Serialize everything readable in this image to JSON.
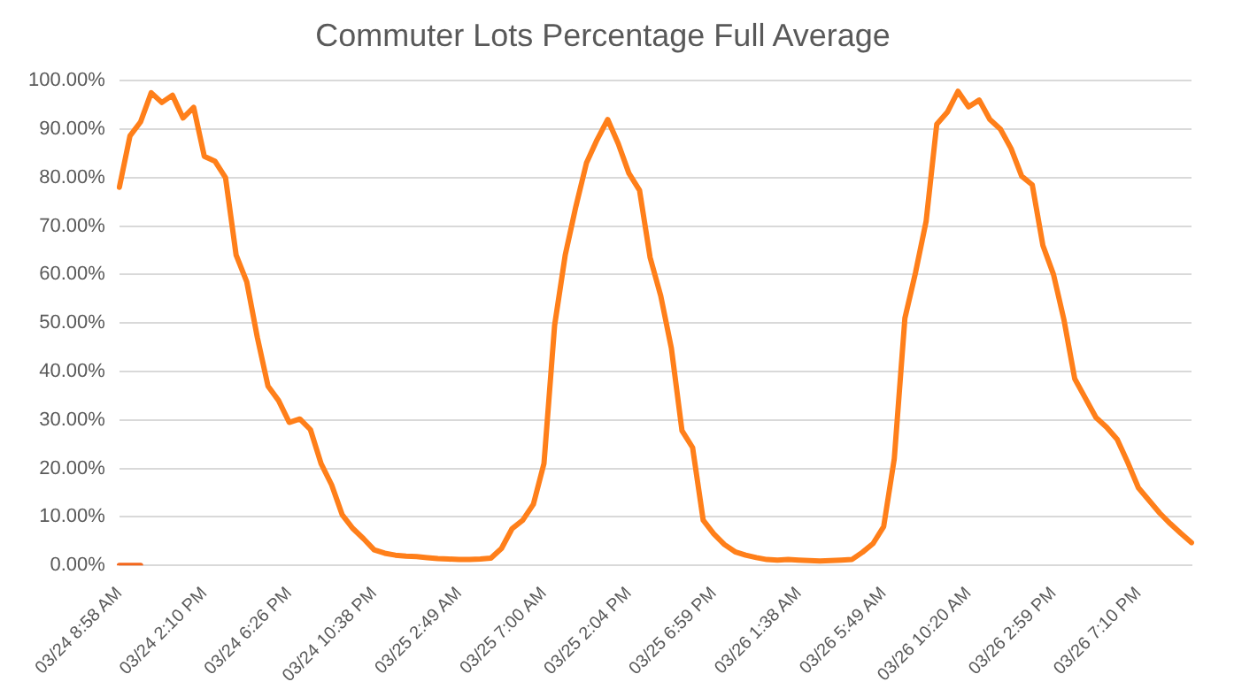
{
  "chart_data": {
    "type": "line",
    "title": "Commuter Lots Percentage Full Average",
    "categories": [
      "03/24 8:58 AM",
      null,
      null,
      null,
      null,
      null,
      null,
      null,
      "03/24 2:10 PM",
      null,
      null,
      null,
      null,
      null,
      null,
      null,
      "03/24 6:26 PM",
      null,
      null,
      null,
      null,
      null,
      null,
      null,
      "03/24 10:38 PM",
      null,
      null,
      null,
      null,
      null,
      null,
      null,
      "03/25 2:49 AM",
      null,
      null,
      null,
      null,
      null,
      null,
      null,
      "03/25 7:00 AM",
      null,
      null,
      null,
      null,
      null,
      null,
      null,
      "03/25 2:04 PM",
      null,
      null,
      null,
      null,
      null,
      null,
      null,
      "03/25 6:59 PM",
      null,
      null,
      null,
      null,
      null,
      null,
      null,
      "03/26 1:38 AM",
      null,
      null,
      null,
      null,
      null,
      null,
      null,
      "03/26 5:49 AM",
      null,
      null,
      null,
      null,
      null,
      null,
      null,
      "03/26 10:20 AM",
      null,
      null,
      null,
      null,
      null,
      null,
      null,
      "03/26 2:59 PM",
      null,
      null,
      null,
      null,
      null,
      null,
      null,
      "03/26 7:10 PM",
      null,
      null,
      null,
      null,
      null
    ],
    "series": [
      {
        "color": "#ff7f1a",
        "values": [
          78,
          88.6,
          91.5,
          97.5,
          95.5,
          97,
          92.3,
          94.5,
          84.4,
          83.4,
          80,
          64,
          58.5,
          47,
          37,
          34,
          29.5,
          30.2,
          28,
          21,
          16.6,
          10.4,
          7.6,
          5.5,
          3.2,
          2.5,
          2.1,
          1.9,
          1.8,
          1.6,
          1.4,
          1.3,
          1.2,
          1.2,
          1.3,
          1.5,
          3.5,
          7.6,
          9.3,
          12.6,
          21,
          49.5,
          64,
          74,
          83,
          87.8,
          92,
          87,
          80.9,
          77.4,
          63.5,
          55.6,
          44.8,
          27.8,
          24.3,
          9.3,
          6.5,
          4.3,
          2.8,
          2.1,
          1.6,
          1.2,
          1.1,
          1.2,
          1.1,
          1,
          0.9,
          1,
          1.1,
          1.2,
          2.7,
          4.5,
          8,
          22,
          51,
          60.4,
          71,
          91,
          93.5,
          97.8,
          94.6,
          96,
          92,
          90,
          86,
          80.3,
          78.5,
          66,
          60,
          50.5,
          38.5,
          34.5,
          30.5,
          28.5,
          26,
          21.2,
          16,
          13.4,
          10.8,
          8.6,
          6.6,
          4.7
        ]
      },
      {
        "color": "#f4661b",
        "values": [
          0,
          0,
          0,
          null,
          null,
          null,
          null,
          null,
          null,
          null,
          null,
          null,
          null,
          null,
          null,
          null,
          null,
          null,
          null,
          null,
          null,
          null,
          null,
          null,
          null,
          null,
          null,
          null,
          null,
          null,
          null,
          null,
          null,
          null,
          null,
          null,
          null,
          null,
          null,
          null,
          null,
          null,
          null,
          null,
          null,
          null,
          null,
          null,
          null,
          null,
          null,
          null,
          null,
          null,
          null,
          null,
          null,
          null,
          null,
          null,
          null,
          null,
          null,
          null,
          null,
          null,
          null,
          null,
          null,
          null,
          null,
          null,
          null,
          null,
          null,
          null,
          null,
          null,
          null,
          null,
          null,
          null,
          null,
          null,
          null,
          null,
          null,
          null,
          null,
          null,
          null,
          null,
          null,
          null,
          null,
          null,
          null,
          null,
          null,
          null,
          null,
          null
        ]
      }
    ],
    "ylim": [
      0,
      100
    ],
    "yticks": [
      {
        "value": 0,
        "label": "0.00%"
      },
      {
        "value": 10,
        "label": "10.00%"
      },
      {
        "value": 20,
        "label": "20.00%"
      },
      {
        "value": 30,
        "label": "30.00%"
      },
      {
        "value": 40,
        "label": "40.00%"
      },
      {
        "value": 50,
        "label": "50.00%"
      },
      {
        "value": 60,
        "label": "60.00%"
      },
      {
        "value": 70,
        "label": "70.00%"
      },
      {
        "value": 80,
        "label": "80.00%"
      },
      {
        "value": 90,
        "label": "90.00%"
      },
      {
        "value": 100,
        "label": "100.00%"
      }
    ],
    "grid": "y",
    "legend": false,
    "marker": "none",
    "line_style": "solid"
  }
}
